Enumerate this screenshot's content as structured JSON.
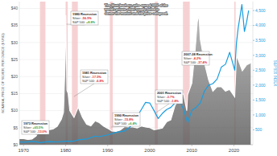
{
  "chart_data": {
    "type": "line",
    "y_label": "NOMINAL PRICE OF SILVER, PER OUNCE ($ USD)",
    "y2_label": "S&P 500 INDEX",
    "xlim": [
      1969,
      2024.5
    ],
    "xticks": [
      1970,
      1980,
      1990,
      2000,
      2010,
      2020
    ],
    "ylim": [
      0,
      42
    ],
    "yticks": [
      {
        "value": 0,
        "label": "$0"
      },
      {
        "value": 5,
        "label": "$5"
      },
      {
        "value": 10,
        "label": "$10"
      },
      {
        "value": 15,
        "label": "$15"
      },
      {
        "value": 20,
        "label": "$20"
      },
      {
        "value": 25,
        "label": "$25"
      },
      {
        "value": 30,
        "label": "$30"
      },
      {
        "value": 35,
        "label": "$35"
      },
      {
        "value": 40,
        "label": "$40"
      }
    ],
    "y2lim": [
      0,
      4800
    ],
    "y2ticks": [
      500,
      {
        "value": 1000,
        "label": "1,000"
      },
      {
        "value": 1500,
        "label": "1,500"
      },
      {
        "value": 2000,
        "label": "2,000"
      },
      {
        "value": 2500,
        "label": "2,500"
      },
      {
        "value": 3000,
        "label": "3,000"
      },
      {
        "value": 3500,
        "label": "3,500"
      },
      {
        "value": 4000,
        "label": "4,000"
      },
      {
        "value": 4500,
        "label": "4,500"
      }
    ],
    "grid": true,
    "recessions": [
      {
        "start": 1973.9,
        "end": 1975.2
      },
      {
        "start": 1980.0,
        "end": 1980.5
      },
      {
        "start": 1981.5,
        "end": 1982.9
      },
      {
        "start": 1990.5,
        "end": 1991.2
      },
      {
        "start": 2001.2,
        "end": 2001.9
      },
      {
        "start": 2007.9,
        "end": 2009.5
      },
      {
        "start": 2020.1,
        "end": 2020.4
      }
    ],
    "series": [
      {
        "name": "Silver",
        "type": "area",
        "color": "#a6a6a6",
        "x": [
          1969,
          1970,
          1971,
          1972,
          1973,
          1974,
          1975,
          1976,
          1977,
          1978,
          1979,
          1979.5,
          1979.9,
          1980.05,
          1980.3,
          1980.6,
          1981,
          1982,
          1983,
          1984,
          1985,
          1986,
          1987,
          1988,
          1989,
          1990,
          1991,
          1992,
          1993,
          1994,
          1995,
          1996,
          1997,
          1998,
          1999,
          2000,
          2001,
          2002,
          2003,
          2004,
          2005,
          2006,
          2007,
          2008,
          2008.8,
          2009,
          2010,
          2010.8,
          2011.3,
          2011.7,
          2012,
          2013,
          2014,
          2015,
          2016,
          2017,
          2018,
          2019,
          2020.2,
          2020.6,
          2021,
          2022,
          2023,
          2024
        ],
        "values": [
          1.8,
          1.77,
          1.55,
          1.68,
          2.56,
          4.7,
          4.4,
          4.35,
          4.62,
          5.4,
          7.5,
          9.5,
          25,
          38,
          16,
          15,
          10,
          8,
          11,
          8,
          6,
          5.5,
          7,
          6.5,
          5.5,
          4.8,
          4,
          3.9,
          4.3,
          5.3,
          5.2,
          5.2,
          4.9,
          5.5,
          5.2,
          5,
          4.4,
          4.6,
          4.9,
          6.7,
          7.3,
          11.5,
          13.4,
          15,
          10,
          14.7,
          18,
          28,
          36,
          38,
          31,
          24,
          19,
          15.7,
          17,
          17,
          15.7,
          16.2,
          14,
          26,
          25,
          21.7,
          23.4,
          24
        ]
      },
      {
        "name": "S&P 500",
        "type": "line",
        "color": "#1a9de0",
        "axis": "y2",
        "x": [
          1969,
          1970,
          1972,
          1973,
          1974,
          1975,
          1976,
          1978,
          1980,
          1982,
          1983,
          1985,
          1987,
          1988,
          1990,
          1992,
          1994,
          1995,
          1996,
          1997,
          1998,
          1999,
          2000,
          2001,
          2002,
          2003,
          2004,
          2005,
          2006,
          2007,
          2008,
          2009,
          2009.5,
          2010,
          2011,
          2012,
          2013,
          2014,
          2015,
          2016,
          2017,
          2018,
          2019,
          2020.2,
          2020.6,
          2021,
          2021.9,
          2022.5,
          2023,
          2023.5
        ],
        "values": [
          95,
          85,
          110,
          100,
          70,
          90,
          105,
          95,
          120,
          120,
          165,
          190,
          290,
          270,
          330,
          415,
          460,
          560,
          700,
          950,
          1180,
          1420,
          1400,
          1150,
          880,
          1050,
          1180,
          1250,
          1400,
          1500,
          1200,
          750,
          950,
          1150,
          1250,
          1400,
          1800,
          2000,
          2050,
          2200,
          2600,
          2700,
          3100,
          2500,
          3400,
          3900,
          4700,
          3800,
          4100,
          4500
        ]
      }
    ],
    "note": "The Hunt brothers, who owned 33% of the world's private silver supply, failed to corner the market and the price collapsed.",
    "annotations": [
      {
        "title": "1973 Recession",
        "rows": [
          {
            "label": "Silver:",
            "value": "+65.5%"
          },
          {
            "label": "S&P 500:",
            "value": "-13.0%"
          }
        ]
      },
      {
        "title": "1980 Recession",
        "rows": [
          {
            "label": "Silver:",
            "value": "-56.5%"
          },
          {
            "label": "S&P 500:",
            "value": "+8.8%"
          }
        ]
      },
      {
        "title": "1981 Recession",
        "rows": [
          {
            "label": "Silver:",
            "value": "-17.5%"
          },
          {
            "label": "S&P 500:",
            "value": "-6.8%"
          }
        ]
      },
      {
        "title": "1990 Recession",
        "rows": [
          {
            "label": "Silver:",
            "value": "-15.8%"
          },
          {
            "label": "S&P 500:",
            "value": "+6.4%"
          }
        ]
      },
      {
        "title": "2001 Recession",
        "rows": [
          {
            "label": "Silver:",
            "value": "-3.7%"
          },
          {
            "label": "S&P 500:",
            "value": "-1.8%"
          }
        ]
      },
      {
        "title": "2007-08 Recession",
        "rows": [
          {
            "label": "Silver:",
            "value": "-4.2%"
          },
          {
            "label": "S&P 500:",
            "value": "-37.4%"
          }
        ]
      }
    ]
  }
}
